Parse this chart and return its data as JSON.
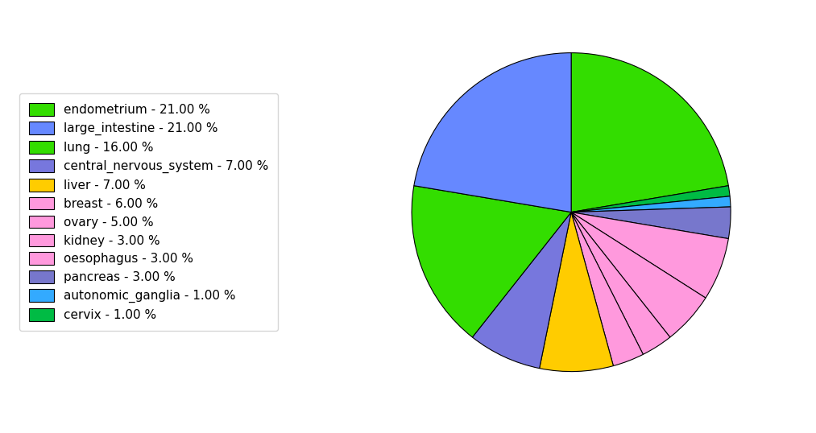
{
  "labels": [
    "endometrium - 21.00 %",
    "large_intestine - 21.00 %",
    "lung - 16.00 %",
    "central_nervous_system - 7.00 %",
    "liver - 7.00 %",
    "breast - 6.00 %",
    "ovary - 5.00 %",
    "kidney - 3.00 %",
    "oesophagus - 3.00 %",
    "pancreas - 3.00 %",
    "autonomic_ganglia - 1.00 %",
    "cervix - 1.00 %"
  ],
  "values": [
    21,
    21,
    16,
    7,
    7,
    6,
    5,
    3,
    3,
    3,
    1,
    1
  ],
  "pie_order": [
    0,
    1,
    2,
    3,
    4,
    5,
    6,
    7,
    8,
    9,
    10,
    11
  ],
  "colors": [
    "#33dd00",
    "#6688ff",
    "#33dd00",
    "#7777dd",
    "#ffcc00",
    "#ff99dd",
    "#ff99dd",
    "#ff99dd",
    "#ff99dd",
    "#7777cc",
    "#33aaff",
    "#00bb44"
  ],
  "startangle": 90,
  "counterclock": false,
  "pie_slice_order": [
    0,
    11,
    10,
    9,
    5,
    6,
    7,
    8,
    4,
    3,
    2,
    1
  ],
  "figsize": [
    10.13,
    5.38
  ],
  "dpi": 100
}
